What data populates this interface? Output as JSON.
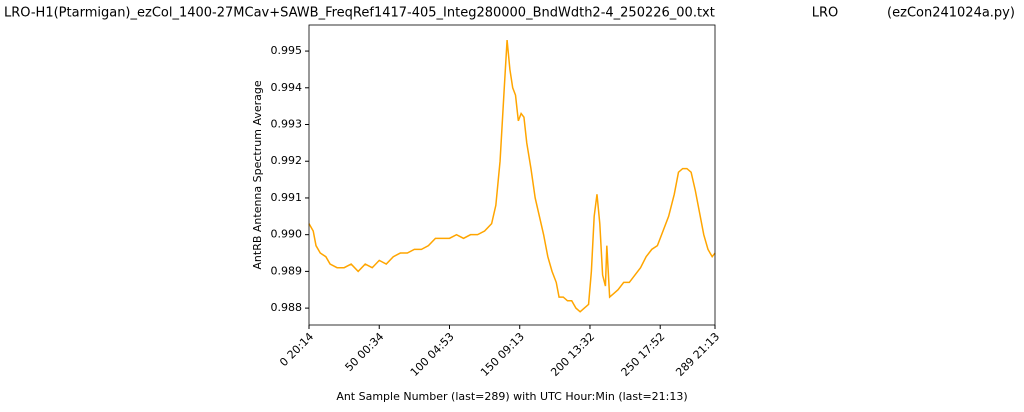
{
  "chart_data": {
    "type": "line",
    "title": [
      "LRO-H1(Ptarmigan)_ezCol_1400-27MCav+SAWB_FreqRef1417-405_Integ280000_BndWdth2-4_250226_00.txt",
      "LRO",
      "(ezCon241024a.py)"
    ],
    "xlabel": "Ant Sample Number (last=289) with UTC Hour:Min (last=21:13)",
    "ylabel": "AntRB Antenna Spectrum Average",
    "x": [
      0,
      3,
      5,
      8,
      12,
      15,
      20,
      25,
      30,
      35,
      40,
      45,
      50,
      55,
      60,
      65,
      70,
      75,
      80,
      85,
      90,
      95,
      100,
      105,
      110,
      115,
      120,
      125,
      130,
      133,
      136,
      139,
      141,
      143,
      145,
      147,
      149,
      151,
      153,
      155,
      158,
      161,
      164,
      167,
      170,
      173,
      176,
      178,
      181,
      184,
      187,
      190,
      193,
      196,
      199,
      201,
      203,
      205,
      207,
      209,
      211,
      212,
      214,
      217,
      220,
      224,
      228,
      232,
      236,
      240,
      244,
      248,
      252,
      256,
      260,
      263,
      266,
      269,
      272,
      275,
      278,
      281,
      284,
      287,
      289
    ],
    "series": [
      {
        "name": "AntRB",
        "color": "#ffa500",
        "values": [
          0.9903,
          0.9901,
          0.9897,
          0.9895,
          0.9894,
          0.9892,
          0.9891,
          0.9891,
          0.9892,
          0.989,
          0.9892,
          0.9891,
          0.9893,
          0.9892,
          0.9894,
          0.9895,
          0.9895,
          0.9896,
          0.9896,
          0.9897,
          0.9899,
          0.9899,
          0.9899,
          0.99,
          0.9899,
          0.99,
          0.99,
          0.9901,
          0.9903,
          0.9908,
          0.992,
          0.994,
          0.9953,
          0.9945,
          0.994,
          0.9938,
          0.9931,
          0.9933,
          0.9932,
          0.9925,
          0.9918,
          0.991,
          0.9905,
          0.99,
          0.9894,
          0.989,
          0.9887,
          0.9883,
          0.9883,
          0.9882,
          0.9882,
          0.988,
          0.9879,
          0.988,
          0.9881,
          0.989,
          0.9905,
          0.9911,
          0.9903,
          0.9889,
          0.9886,
          0.9897,
          0.9883,
          0.9884,
          0.9885,
          0.9887,
          0.9887,
          0.9889,
          0.9891,
          0.9894,
          0.9896,
          0.9897,
          0.9901,
          0.9905,
          0.9911,
          0.9917,
          0.9918,
          0.9918,
          0.9917,
          0.9912,
          0.9906,
          0.99,
          0.9896,
          0.9894,
          0.9895
        ]
      }
    ],
    "xlim": [
      0,
      289
    ],
    "xticks": [
      {
        "value": 0,
        "label": "0 20:14"
      },
      {
        "value": 50,
        "label": "50 00:34"
      },
      {
        "value": 100,
        "label": "100 04:53"
      },
      {
        "value": 150,
        "label": "150 09:13"
      },
      {
        "value": 200,
        "label": "200 13:32"
      },
      {
        "value": 250,
        "label": "250 17:52"
      },
      {
        "value": 289,
        "label": "289 21:13"
      }
    ],
    "ylim": [
      0.98754,
      0.99571
    ],
    "yticks": [
      0.988,
      0.989,
      0.99,
      0.991,
      0.992,
      0.993,
      0.994,
      0.995
    ],
    "ytick_labels": [
      "0.988",
      "0.989",
      "0.990",
      "0.991",
      "0.992",
      "0.993",
      "0.994",
      "0.995"
    ],
    "grid": false
  }
}
